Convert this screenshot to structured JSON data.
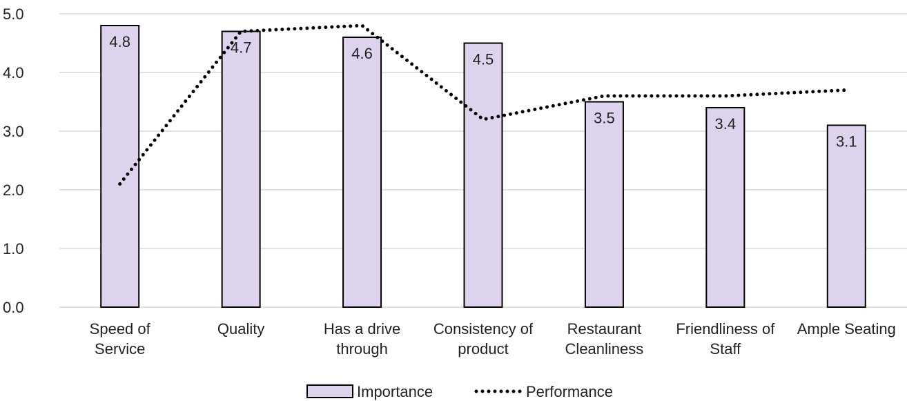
{
  "chart_data": {
    "type": "bar",
    "categories": [
      [
        "Speed of",
        "Service"
      ],
      [
        "Quality"
      ],
      [
        "Has a drive",
        "through"
      ],
      [
        "Consistency of",
        "product"
      ],
      [
        "Restaurant",
        "Cleanliness"
      ],
      [
        "Friendliness of",
        "Staff"
      ],
      [
        "Ample Seating"
      ]
    ],
    "series": [
      {
        "name": "Importance",
        "kind": "bar",
        "values": [
          4.8,
          4.7,
          4.6,
          4.5,
          3.5,
          3.4,
          3.1
        ],
        "data_labels": [
          "4.8",
          "4.7",
          "4.6",
          "4.5",
          "3.5",
          "3.4",
          "3.1"
        ],
        "fill": "#ddd3ec",
        "stroke": "#000000"
      },
      {
        "name": "Performance",
        "kind": "line",
        "style": "dotted",
        "values": [
          2.1,
          4.7,
          4.8,
          3.2,
          3.6,
          3.6,
          3.7
        ],
        "stroke": "#000000"
      }
    ],
    "y_ticks": [
      "0.0",
      "1.0",
      "2.0",
      "3.0",
      "4.0",
      "5.0"
    ],
    "ylim": [
      0,
      5
    ],
    "grid": "horizontal",
    "legend_position": "bottom",
    "gridline_color": "#d9d9d9"
  }
}
